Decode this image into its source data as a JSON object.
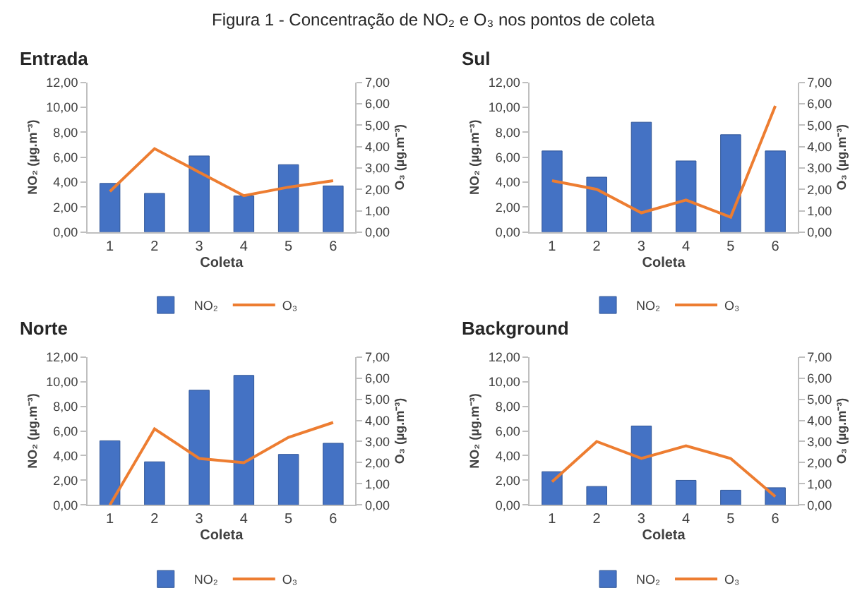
{
  "chart_data": [
    {
      "type": "bar",
      "title": "Entrada",
      "annotations": [
        "Figura 1 - Concentração de NO₂ e O₃ nos pontos de coleta"
      ],
      "xlabel": "Coleta",
      "ylabel": "NO₂ (µg.m⁻³)",
      "y2label": "O₃ (µg.m⁻³)",
      "categories": [
        "1",
        "2",
        "3",
        "4",
        "5",
        "6"
      ],
      "series": [
        {
          "name": "NO₂",
          "color": "#4472c4",
          "values": [
            3.9,
            3.1,
            6.1,
            2.9,
            5.4,
            3.7
          ]
        },
        {
          "name": "O₃",
          "type": "line",
          "axis": "y2",
          "color": "#ed7d31",
          "values": [
            1.9,
            3.9,
            2.8,
            1.7,
            2.1,
            2.4
          ]
        }
      ],
      "ylim": [
        0,
        12
      ],
      "yticks": [
        {
          "value": 0,
          "label": "0,00"
        },
        {
          "value": 2,
          "label": "2,00"
        },
        {
          "value": 4,
          "label": "4,00"
        },
        {
          "value": 6,
          "label": "6,00"
        },
        {
          "value": 8,
          "label": "8,00"
        },
        {
          "value": 10,
          "label": "10,00"
        },
        {
          "value": 12,
          "label": "12,00"
        }
      ],
      "y2lim": [
        0,
        7
      ],
      "y2ticks": [
        {
          "value": 0,
          "label": "0,00"
        },
        {
          "value": 1,
          "label": "1,00"
        },
        {
          "value": 2,
          "label": "2,00"
        },
        {
          "value": 3,
          "label": "3,00"
        },
        {
          "value": 4,
          "label": "4,00"
        },
        {
          "value": 5,
          "label": "5,00"
        },
        {
          "value": 6,
          "label": "6,00"
        },
        {
          "value": 7,
          "label": "7,00"
        }
      ],
      "legend": "bottom"
    },
    {
      "type": "bar",
      "title": "Sul",
      "xlabel": "Coleta",
      "ylabel": "NO₂ (µg.m⁻³)",
      "y2label": "O₃ (µg.m⁻³)",
      "categories": [
        "1",
        "2",
        "3",
        "4",
        "5",
        "6"
      ],
      "series": [
        {
          "name": "NO₂",
          "color": "#4472c4",
          "values": [
            6.5,
            4.4,
            8.8,
            5.7,
            7.8,
            6.5
          ]
        },
        {
          "name": "O₃",
          "type": "line",
          "axis": "y2",
          "color": "#ed7d31",
          "values": [
            2.4,
            2.0,
            0.9,
            1.5,
            0.7,
            5.9
          ]
        }
      ],
      "ylim": [
        0,
        12
      ],
      "yticks": [
        {
          "value": 0,
          "label": "0,00"
        },
        {
          "value": 2,
          "label": "2,00"
        },
        {
          "value": 4,
          "label": "4,00"
        },
        {
          "value": 6,
          "label": "6,00"
        },
        {
          "value": 8,
          "label": "8,00"
        },
        {
          "value": 10,
          "label": "10,00"
        },
        {
          "value": 12,
          "label": "12,00"
        }
      ],
      "y2lim": [
        0,
        7
      ],
      "y2ticks": [
        {
          "value": 0,
          "label": "0,00"
        },
        {
          "value": 1,
          "label": "1,00"
        },
        {
          "value": 2,
          "label": "2,00"
        },
        {
          "value": 3,
          "label": "3,00"
        },
        {
          "value": 4,
          "label": "4,00"
        },
        {
          "value": 5,
          "label": "5,00"
        },
        {
          "value": 6,
          "label": "6,00"
        },
        {
          "value": 7,
          "label": "7,00"
        }
      ],
      "legend": "bottom"
    },
    {
      "type": "bar",
      "title": "Norte",
      "xlabel": "Coleta",
      "ylabel": "NO₂ (µg.m⁻³)",
      "y2label": "O₃ (µg.m⁻³)",
      "categories": [
        "1",
        "2",
        "3",
        "4",
        "5",
        "6"
      ],
      "series": [
        {
          "name": "NO₂",
          "color": "#4472c4",
          "values": [
            5.2,
            3.5,
            9.3,
            10.5,
            4.1,
            5.0
          ]
        },
        {
          "name": "O₃",
          "type": "line",
          "axis": "y2",
          "color": "#ed7d31",
          "values": [
            0.0,
            3.6,
            2.2,
            2.0,
            3.2,
            3.9
          ]
        }
      ],
      "ylim": [
        0,
        12
      ],
      "yticks": [
        {
          "value": 0,
          "label": "0,00"
        },
        {
          "value": 2,
          "label": "2,00"
        },
        {
          "value": 4,
          "label": "4,00"
        },
        {
          "value": 6,
          "label": "6,00"
        },
        {
          "value": 8,
          "label": "8,00"
        },
        {
          "value": 10,
          "label": "10,00"
        },
        {
          "value": 12,
          "label": "12,00"
        }
      ],
      "y2lim": [
        0,
        7
      ],
      "y2ticks": [
        {
          "value": 0,
          "label": "0,00"
        },
        {
          "value": 1,
          "label": "1,00"
        },
        {
          "value": 2,
          "label": "2,00"
        },
        {
          "value": 3,
          "label": "3,00"
        },
        {
          "value": 4,
          "label": "4,00"
        },
        {
          "value": 5,
          "label": "5,00"
        },
        {
          "value": 6,
          "label": "6,00"
        },
        {
          "value": 7,
          "label": "7,00"
        }
      ],
      "legend": "bottom"
    },
    {
      "type": "bar",
      "title": "Background",
      "xlabel": "Coleta",
      "ylabel": "NO₂ (µg.m⁻³)",
      "y2label": "O₃ (µg.m⁻³)",
      "categories": [
        "1",
        "2",
        "3",
        "4",
        "5",
        "6"
      ],
      "series": [
        {
          "name": "NO₂",
          "color": "#4472c4",
          "values": [
            2.7,
            1.5,
            6.4,
            2.0,
            1.2,
            1.4
          ]
        },
        {
          "name": "O₃",
          "type": "line",
          "axis": "y2",
          "color": "#ed7d31",
          "values": [
            1.1,
            3.0,
            2.2,
            2.8,
            2.2,
            0.4
          ]
        }
      ],
      "ylim": [
        0,
        12
      ],
      "yticks": [
        {
          "value": 0,
          "label": "0,00"
        },
        {
          "value": 2,
          "label": "2,00"
        },
        {
          "value": 4,
          "label": "4,00"
        },
        {
          "value": 6,
          "label": "6,00"
        },
        {
          "value": 8,
          "label": "8,00"
        },
        {
          "value": 10,
          "label": "10,00"
        },
        {
          "value": 12,
          "label": "12,00"
        }
      ],
      "y2lim": [
        0,
        7
      ],
      "y2ticks": [
        {
          "value": 0,
          "label": "0,00"
        },
        {
          "value": 1,
          "label": "1,00"
        },
        {
          "value": 2,
          "label": "2,00"
        },
        {
          "value": 3,
          "label": "3,00"
        },
        {
          "value": 4,
          "label": "4,00"
        },
        {
          "value": 5,
          "label": "5,00"
        },
        {
          "value": 6,
          "label": "6,00"
        },
        {
          "value": 7,
          "label": "7,00"
        }
      ],
      "legend": "bottom"
    }
  ]
}
